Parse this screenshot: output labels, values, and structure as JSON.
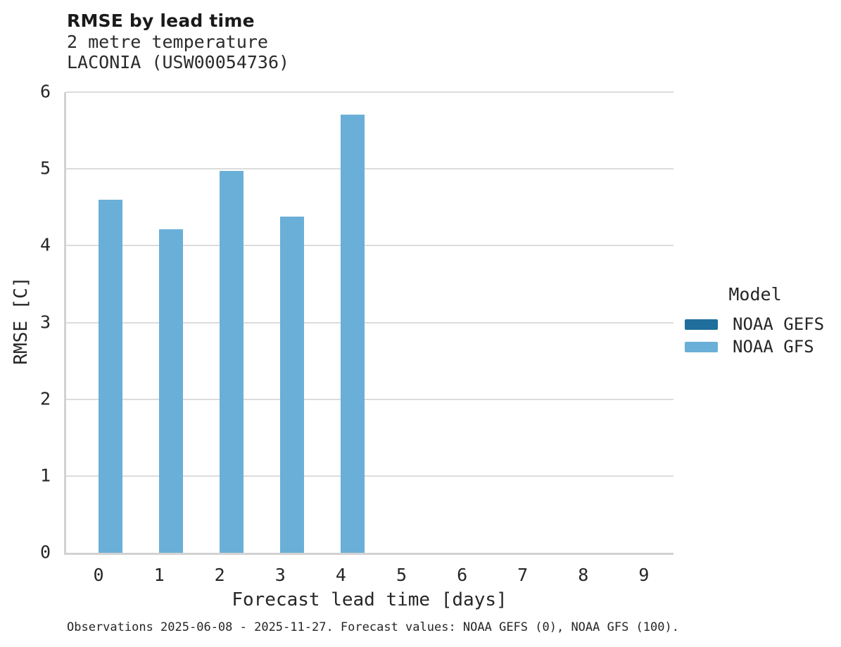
{
  "chart_data": {
    "type": "bar",
    "title": "RMSE by lead time",
    "subtitle_lines": [
      "2 metre temperature",
      "LACONIA (USW00054736)"
    ],
    "xlabel": "Forecast lead time [days]",
    "ylabel": "RMSE [C]",
    "categories": [
      "0",
      "1",
      "2",
      "3",
      "4",
      "5",
      "6",
      "7",
      "8",
      "9"
    ],
    "ylim": [
      0,
      6
    ],
    "y_ticks": [
      0,
      1,
      2,
      3,
      4,
      5,
      6
    ],
    "grid": true,
    "legend": {
      "title": "Model",
      "position": "right-center",
      "entries": [
        {
          "label": "NOAA GEFS",
          "color": "#1f6e9c"
        },
        {
          "label": "NOAA GFS",
          "color": "#6aafd7"
        }
      ]
    },
    "series": [
      {
        "name": "NOAA GEFS",
        "color": "#1f6e9c",
        "values": [
          null,
          null,
          null,
          null,
          null,
          null,
          null,
          null,
          null,
          null
        ]
      },
      {
        "name": "NOAA GFS",
        "color": "#6aafd7",
        "values": [
          4.6,
          4.21,
          4.97,
          4.38,
          5.71,
          null,
          null,
          null,
          null,
          null
        ]
      }
    ],
    "caption": "Observations 2025-06-08 - 2025-11-27. Forecast values: NOAA GEFS (0), NOAA GFS (100).",
    "colors": {
      "grid": "#dcdcdc",
      "spine": "#d2d2d2",
      "text": "#262626"
    }
  }
}
